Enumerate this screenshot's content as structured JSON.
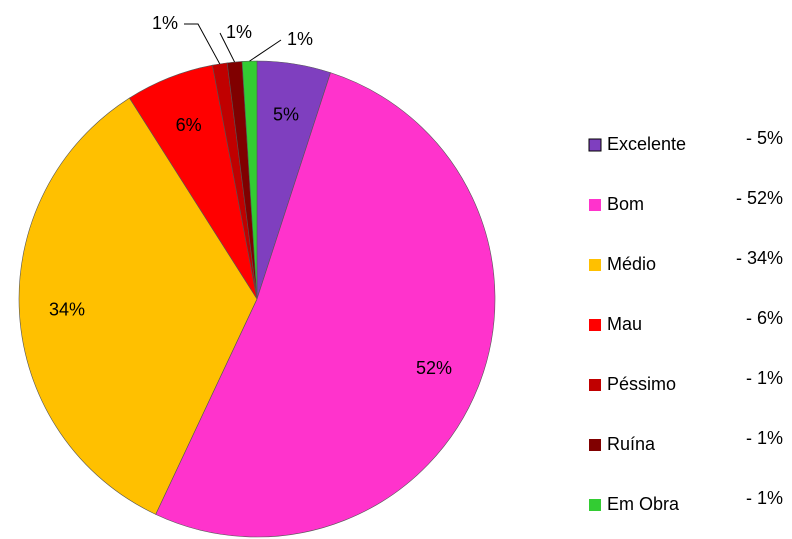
{
  "chart_data": {
    "type": "pie",
    "categories": [
      "Excelente",
      "Bom",
      "Médio",
      "Mau",
      "Péssimo",
      "Ruína",
      "Em Obra"
    ],
    "values": [
      5,
      52,
      34,
      6,
      1,
      1,
      1
    ],
    "value_labels": [
      "5%",
      "52%",
      "34%",
      "6%",
      "1%",
      "1%",
      "1%"
    ],
    "legend_labels": [
      "- 5%",
      "- 52%",
      "- 34%",
      "- 6%",
      "- 1%",
      "- 1%",
      "- 1%"
    ],
    "colors": [
      "#7f3fbf",
      "#ff33cc",
      "#ffc000",
      "#ff0000",
      "#c00000",
      "#800000",
      "#33cc33"
    ],
    "legend": "right"
  }
}
